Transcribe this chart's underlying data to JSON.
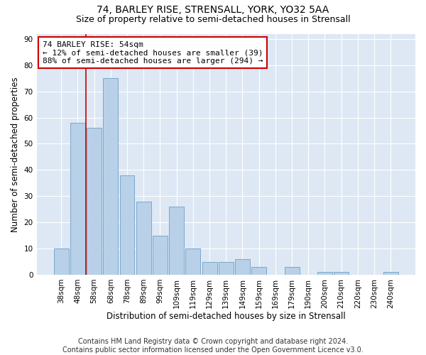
{
  "title": "74, BARLEY RISE, STRENSALL, YORK, YO32 5AA",
  "subtitle": "Size of property relative to semi-detached houses in Strensall",
  "xlabel": "Distribution of semi-detached houses by size in Strensall",
  "ylabel": "Number of semi-detached properties",
  "categories": [
    "38sqm",
    "48sqm",
    "58sqm",
    "68sqm",
    "78sqm",
    "89sqm",
    "99sqm",
    "109sqm",
    "119sqm",
    "129sqm",
    "139sqm",
    "149sqm",
    "159sqm",
    "169sqm",
    "179sqm",
    "190sqm",
    "200sqm",
    "210sqm",
    "220sqm",
    "230sqm",
    "240sqm"
  ],
  "values": [
    10,
    58,
    56,
    75,
    38,
    28,
    15,
    26,
    10,
    5,
    5,
    6,
    3,
    0,
    3,
    0,
    1,
    1,
    0,
    0,
    1
  ],
  "bar_color": "#b8d0e8",
  "bar_edge_color": "#7aa8cc",
  "vline_x": 1.5,
  "annotation_text_line1": "74 BARLEY RISE: 54sqm",
  "annotation_text_line2": "← 12% of semi-detached houses are smaller (39)",
  "annotation_text_line3": "88% of semi-detached houses are larger (294) →",
  "vline_color": "#cc0000",
  "annotation_box_color": "#ffffff",
  "annotation_box_edge": "#cc0000",
  "ylim": [
    0,
    92
  ],
  "yticks": [
    0,
    10,
    20,
    30,
    40,
    50,
    60,
    70,
    80,
    90
  ],
  "plot_bg_color": "#dde8f4",
  "footer_line1": "Contains HM Land Registry data © Crown copyright and database right 2024.",
  "footer_line2": "Contains public sector information licensed under the Open Government Licence v3.0.",
  "title_fontsize": 10,
  "subtitle_fontsize": 9,
  "axis_label_fontsize": 8.5,
  "tick_fontsize": 7.5,
  "annotation_fontsize": 8,
  "footer_fontsize": 7
}
